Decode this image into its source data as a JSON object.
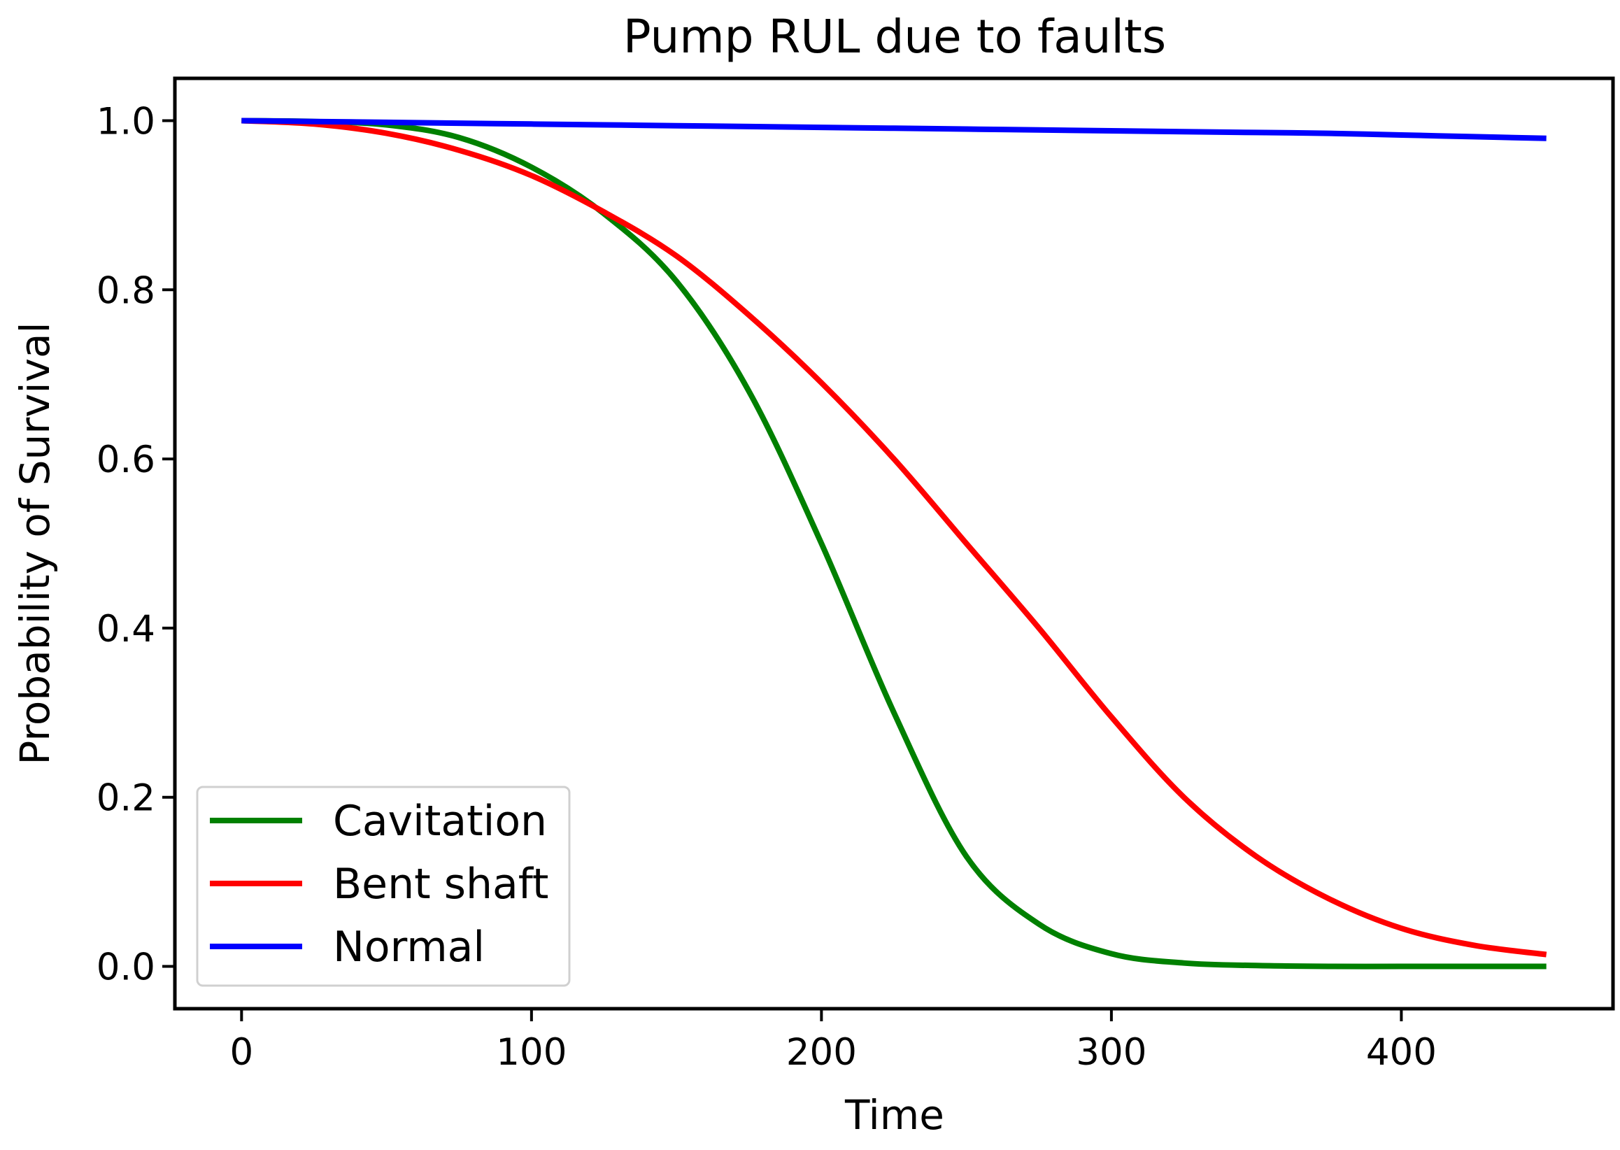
{
  "chart_data": {
    "type": "line",
    "title": "Pump RUL due to faults",
    "xlabel": "Time",
    "ylabel": "Probability of Survival",
    "xlim": [
      -23,
      473
    ],
    "ylim": [
      -0.05,
      1.05
    ],
    "xticks": [
      0,
      100,
      200,
      300,
      400
    ],
    "yticks": [
      0.0,
      0.2,
      0.4,
      0.6,
      0.8,
      1.0
    ],
    "xtick_labels": [
      "0",
      "100",
      "200",
      "300",
      "400"
    ],
    "ytick_labels": [
      "0.0",
      "0.2",
      "0.4",
      "0.6",
      "0.8",
      "1.0"
    ],
    "grid": false,
    "legend": "lower-left",
    "x": [
      0,
      25,
      50,
      75,
      100,
      125,
      150,
      175,
      200,
      225,
      250,
      275,
      300,
      325,
      350,
      375,
      400,
      425,
      450
    ],
    "series": [
      {
        "name": "Cavitation",
        "color": "#008000",
        "values": [
          1.0,
          0.999,
          0.995,
          0.98,
          0.945,
          0.89,
          0.81,
          0.68,
          0.5,
          0.3,
          0.13,
          0.05,
          0.015,
          0.004,
          0.001,
          0.0,
          0.0,
          0.0,
          0.0
        ]
      },
      {
        "name": "Bent shaft",
        "color": "#ff0000",
        "values": [
          1.0,
          0.996,
          0.985,
          0.965,
          0.935,
          0.892,
          0.84,
          0.77,
          0.69,
          0.6,
          0.5,
          0.4,
          0.295,
          0.2,
          0.13,
          0.08,
          0.045,
          0.025,
          0.014
        ]
      },
      {
        "name": "Normal",
        "color": "#0000ff",
        "values": [
          1.0,
          0.999,
          0.998,
          0.997,
          0.996,
          0.995,
          0.994,
          0.993,
          0.992,
          0.991,
          0.99,
          0.989,
          0.988,
          0.987,
          0.986,
          0.985,
          0.983,
          0.981,
          0.979
        ]
      }
    ]
  }
}
